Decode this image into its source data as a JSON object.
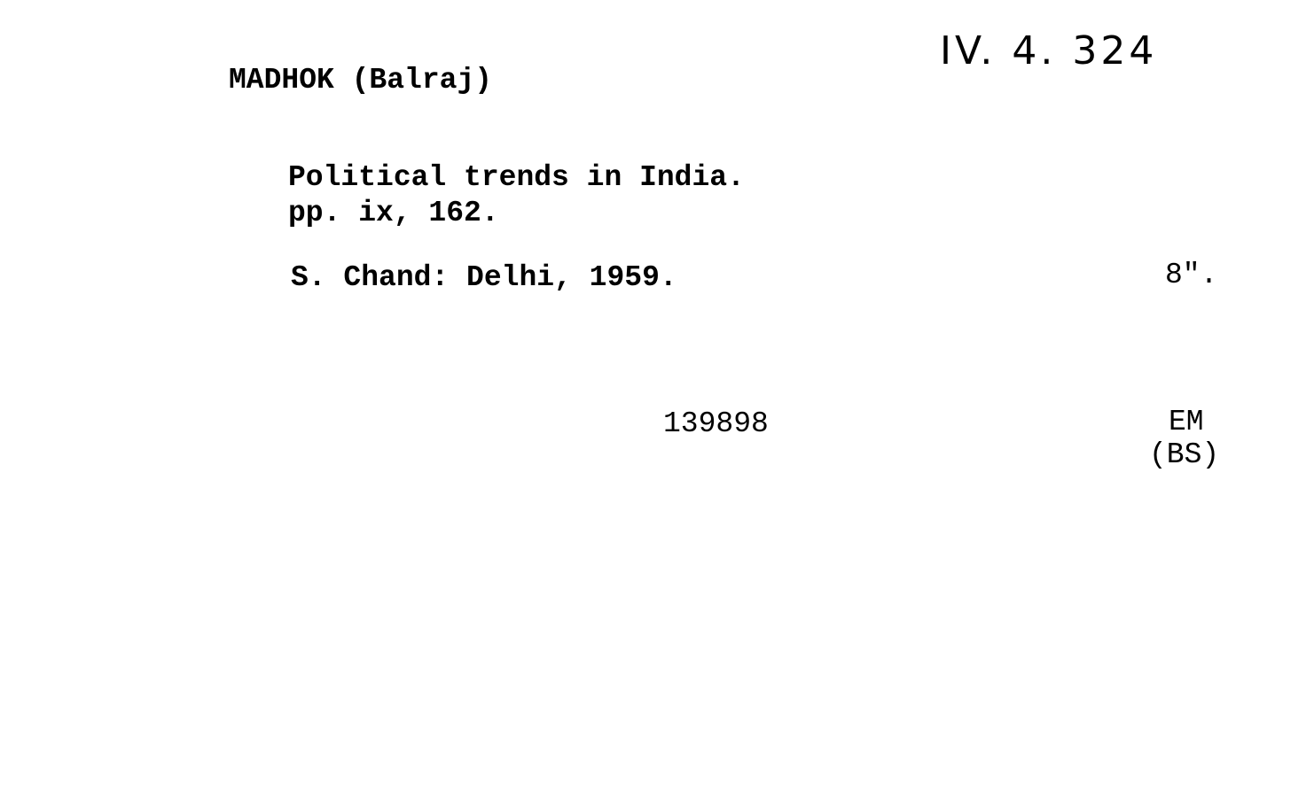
{
  "card": {
    "shelfmark": "IV. 4. 324",
    "author": "MADHOK (Balraj)",
    "title": "Political trends in India.",
    "pagination": "pp. ix, 162.",
    "imprint": "S. Chand: Delhi, 1959.",
    "size": "8\".",
    "number": "139898",
    "code_line1": "EM",
    "code_line2": "(BS)"
  }
}
